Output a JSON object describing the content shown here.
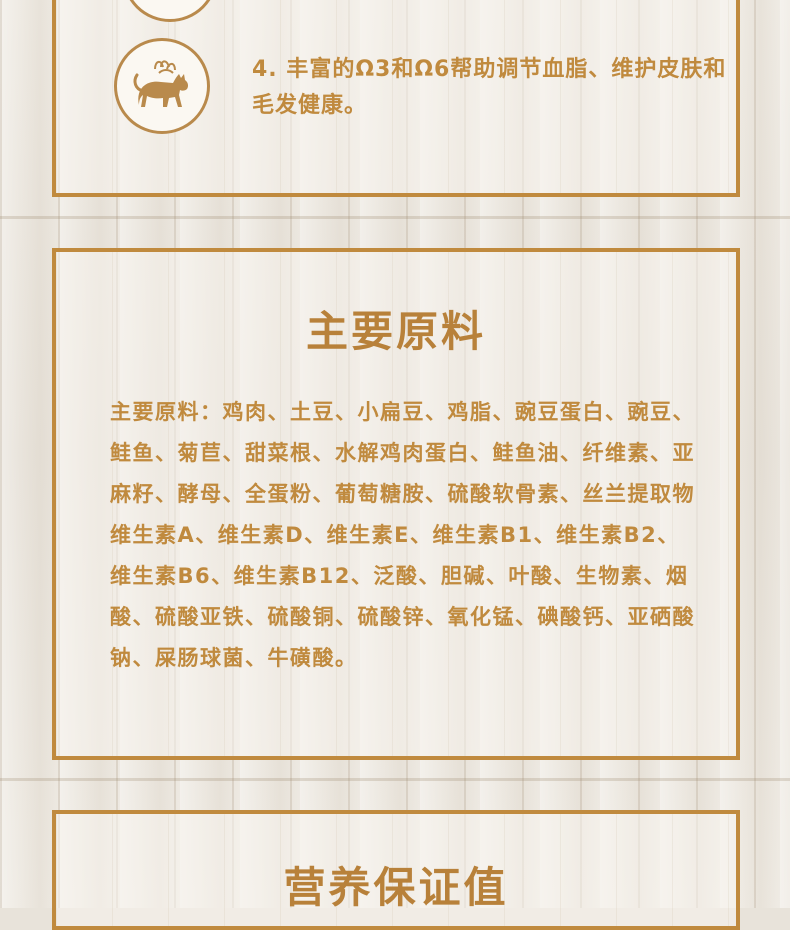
{
  "feature": {
    "text": "4. 丰富的Ω3和Ω6帮助调节血脂、维护皮肤和毛发健康。",
    "icon": "cat-icon"
  },
  "ingredients_section": {
    "title": "主要原料",
    "body": "主要原料：鸡肉、土豆、小扁豆、鸡脂、豌豆蛋白、豌豆、鲑鱼、菊苣、甜菜根、水解鸡肉蛋白、鲑鱼油、纤维素、亚麻籽、酵母、全蛋粉、葡萄糖胺、硫酸软骨素、丝兰提取物 维生素A、维生素D、维生素E、维生素B1、维生素B2、维生素B6、维生素B12、泛酸、胆碱、叶酸、生物素、烟酸、硫酸亚铁、硫酸铜、硫酸锌、氧化锰、碘酸钙、亚硒酸钠、屎肠球菌、牛磺酸。"
  },
  "nutrition_section": {
    "title": "营养保证值"
  },
  "colors": {
    "accent": "#c08a3e",
    "title": "#b8813a",
    "background": "#e9e4dc"
  }
}
